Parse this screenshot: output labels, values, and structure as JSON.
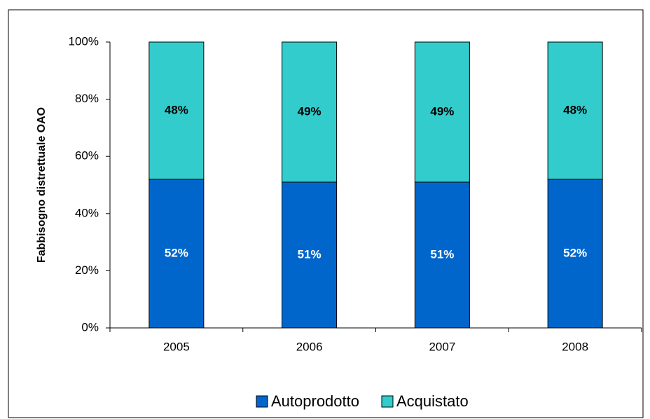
{
  "chart_data": {
    "type": "stacked_bar",
    "y_label": "Fabbisogno distrettuale OAO",
    "categories": [
      "2005",
      "2006",
      "2007",
      "2008"
    ],
    "series": [
      {
        "name": "Autoprodotto",
        "color": "#0066cc",
        "label_color": "#ffffff",
        "values": [
          52,
          51,
          51,
          52
        ],
        "value_labels": [
          "52%",
          "51%",
          "51%",
          "52%"
        ]
      },
      {
        "name": "Acquistato",
        "color": "#33cccc",
        "label_color": "#000000",
        "values": [
          48,
          49,
          49,
          48
        ],
        "value_labels": [
          "48%",
          "49%",
          "49%",
          "48%"
        ]
      }
    ],
    "ylim": [
      0,
      100
    ],
    "yticks": [
      {
        "value": 0,
        "label": "0%"
      },
      {
        "value": 20,
        "label": "20%"
      },
      {
        "value": 40,
        "label": "40%"
      },
      {
        "value": 60,
        "label": "60%"
      },
      {
        "value": 80,
        "label": "80%"
      },
      {
        "value": 100,
        "label": "100%"
      }
    ],
    "legend": "bottom"
  }
}
